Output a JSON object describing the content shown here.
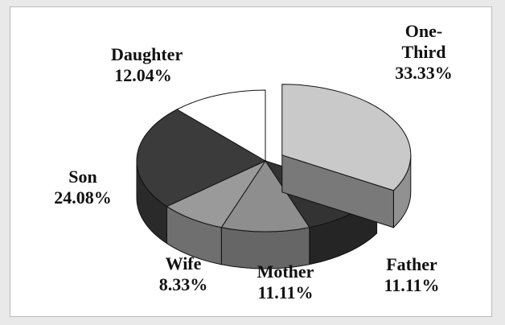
{
  "chart_data": {
    "type": "pie3d",
    "categories": [
      "One-Third",
      "Father",
      "Mother",
      "Wife",
      "Son",
      "Daughter"
    ],
    "values": [
      33.33,
      11.11,
      11.11,
      8.33,
      24.08,
      12.04
    ],
    "value_labels": [
      "33.33%",
      "11.11%",
      "11.11%",
      "8.33%",
      "24.08%",
      "12.04%"
    ],
    "colors": [
      "#c9c9c9",
      "#333333",
      "#8e8e8e",
      "#9a9a9a",
      "#3b3b3b",
      "#ffffff"
    ],
    "exploded": [
      true,
      false,
      false,
      false,
      false,
      false
    ]
  }
}
